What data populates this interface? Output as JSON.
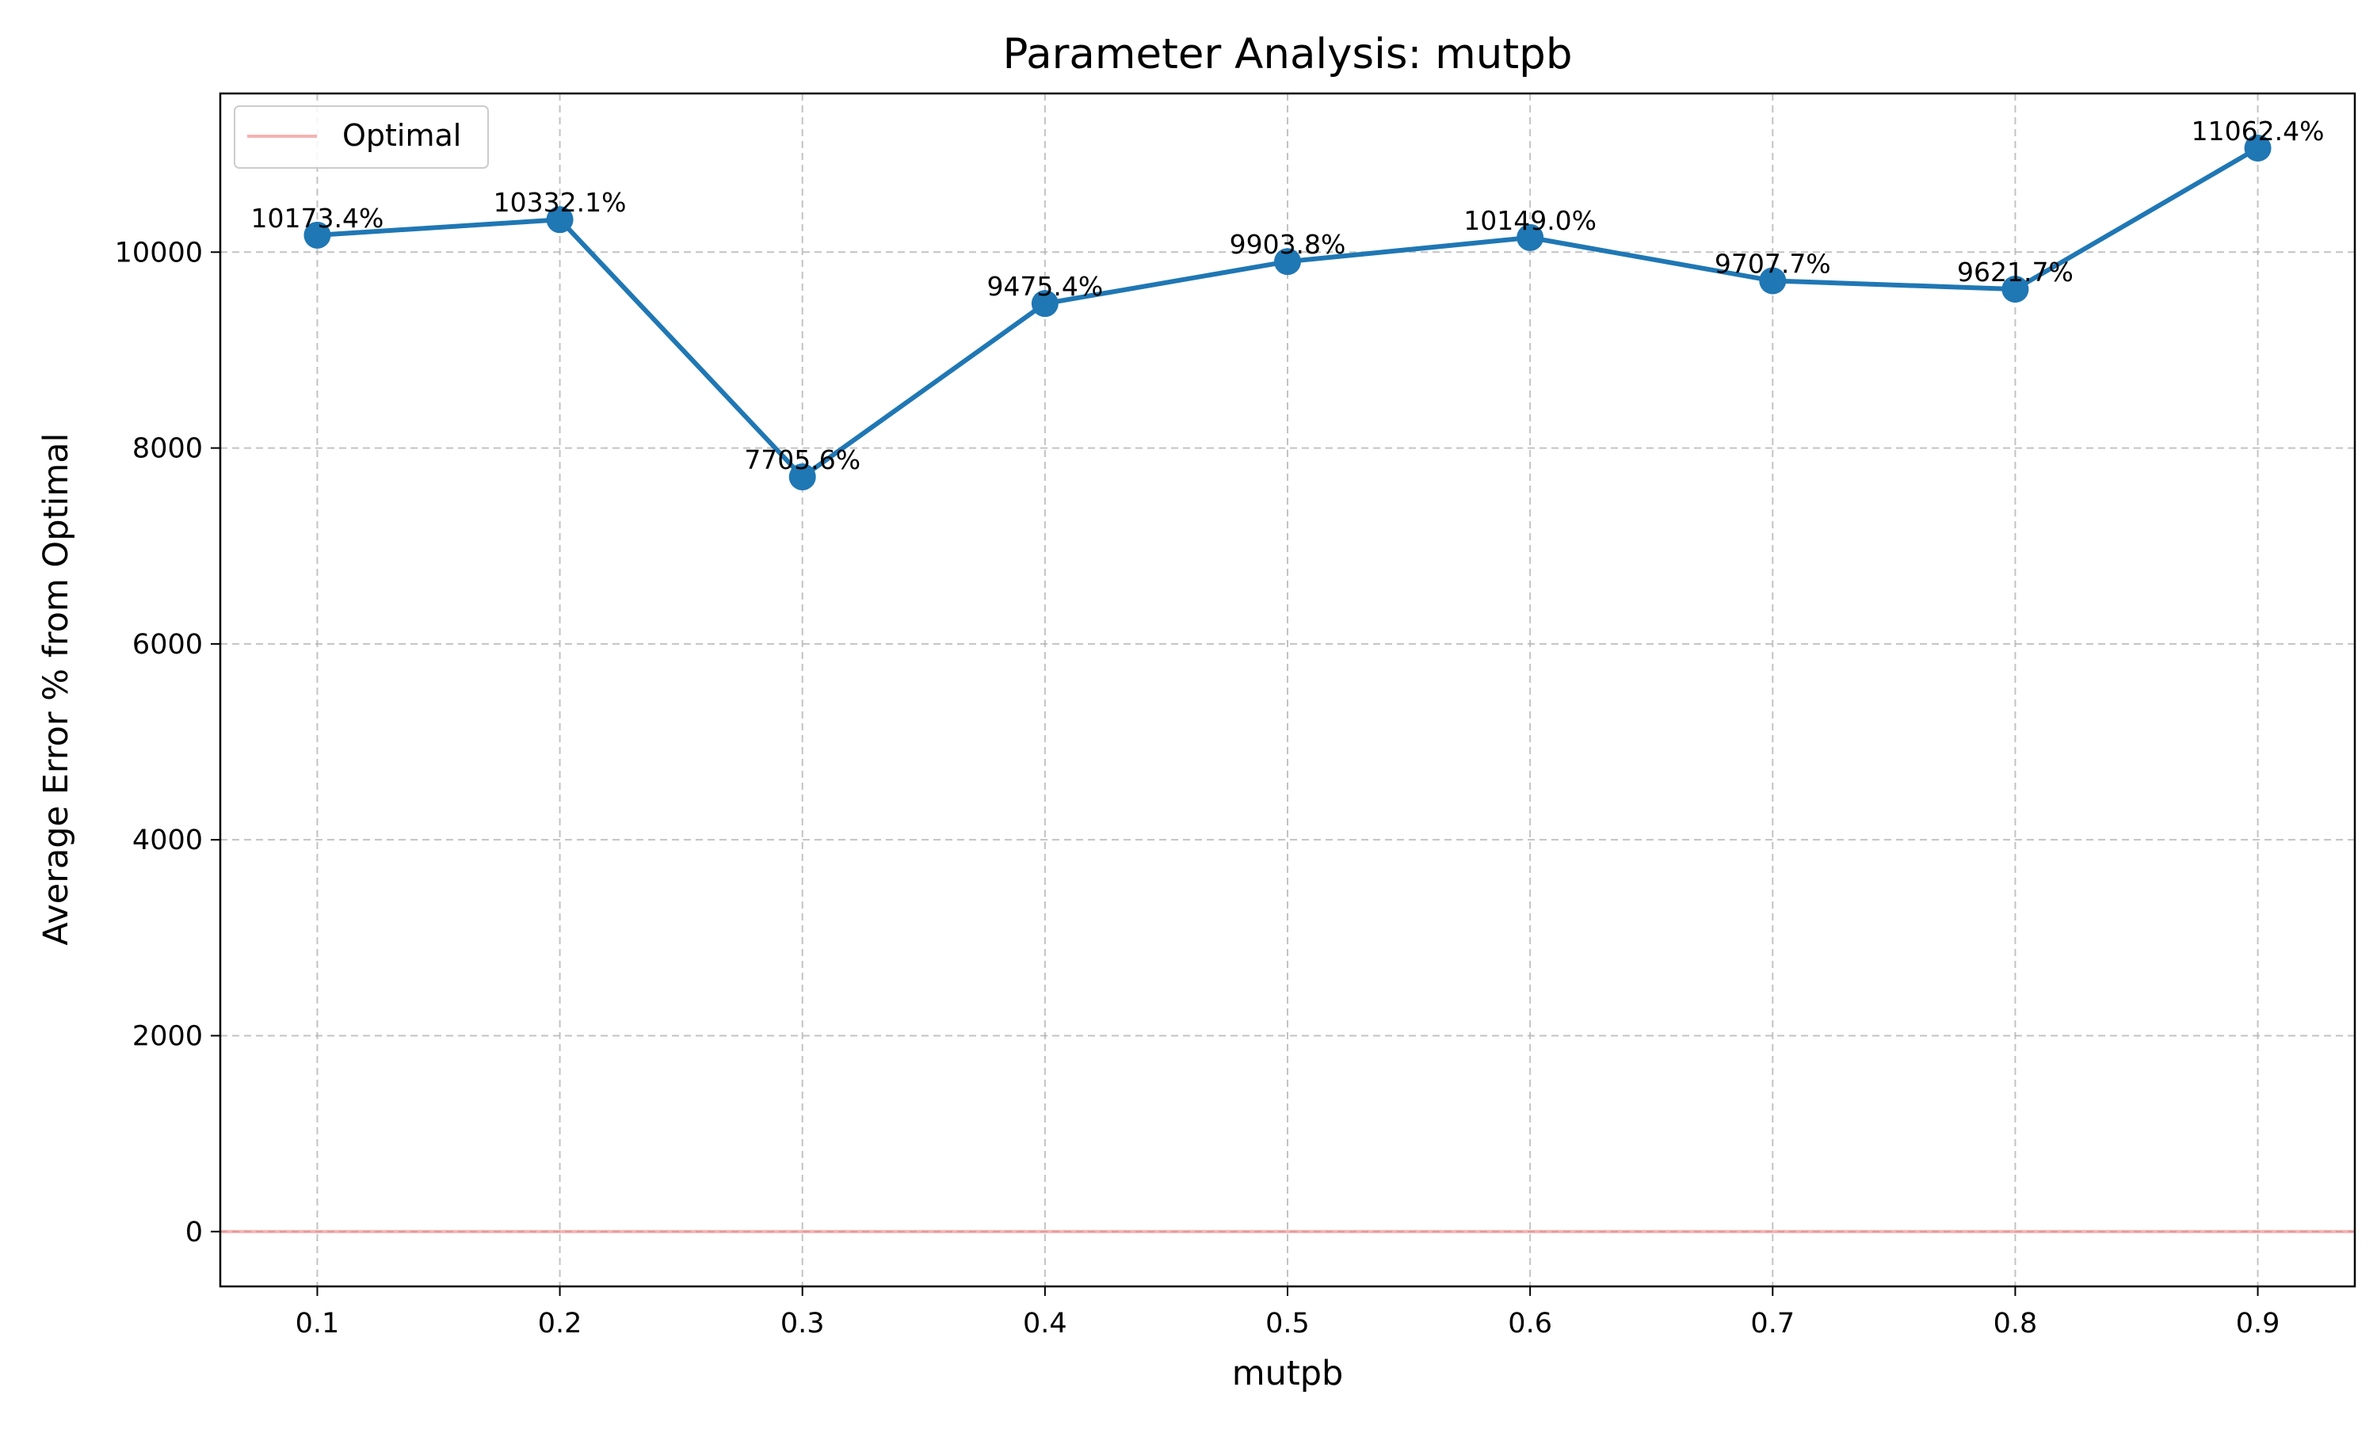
{
  "chart_data": {
    "type": "line",
    "title": "Parameter Analysis: mutpb",
    "xlabel": "mutpb",
    "ylabel": "Average Error % from Optimal",
    "x": [
      0.1,
      0.2,
      0.3,
      0.4,
      0.5,
      0.6,
      0.7,
      0.8,
      0.9
    ],
    "x_tick_labels": [
      "0.1",
      "0.2",
      "0.3",
      "0.4",
      "0.5",
      "0.6",
      "0.7",
      "0.8",
      "0.9"
    ],
    "y_ticks": [
      0,
      2000,
      4000,
      6000,
      8000,
      10000
    ],
    "y_tick_labels": [
      "0",
      "2000",
      "4000",
      "6000",
      "8000",
      "10000"
    ],
    "xlim": [
      0.06,
      0.94
    ],
    "ylim": [
      -560,
      11620
    ],
    "grid": true,
    "series": [
      {
        "name": "",
        "color": "#1f77b4",
        "values": [
          10173.4,
          10332.1,
          7705.6,
          9475.4,
          9903.8,
          10149.0,
          9707.7,
          9621.7,
          11062.4
        ],
        "data_labels": [
          "10173.4%",
          "10332.1%",
          "7705.6%",
          "9475.4%",
          "9903.8%",
          "10149.0%",
          "9707.7%",
          "9621.7%",
          "11062.4%"
        ]
      }
    ],
    "reference_line": {
      "name": "Optimal",
      "y": 0,
      "color": "#f08080"
    },
    "legend": {
      "placement": "top-left",
      "entries": [
        "Optimal"
      ]
    }
  }
}
